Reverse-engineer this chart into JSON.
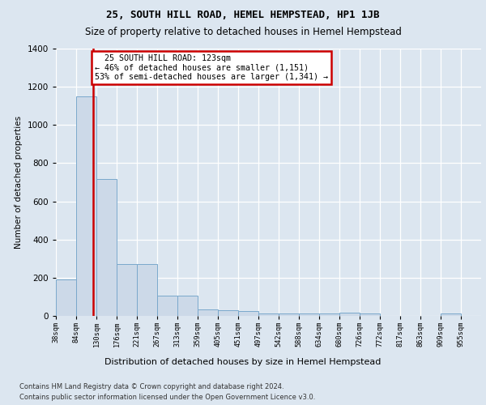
{
  "title1": "25, SOUTH HILL ROAD, HEMEL HEMPSTEAD, HP1 1JB",
  "title2": "Size of property relative to detached houses in Hemel Hempstead",
  "xlabel": "Distribution of detached houses by size in Hemel Hempstead",
  "ylabel": "Number of detached properties",
  "footer1": "Contains HM Land Registry data © Crown copyright and database right 2024.",
  "footer2": "Contains public sector information licensed under the Open Government Licence v3.0.",
  "annotation_line1": "  25 SOUTH HILL ROAD: 123sqm  ",
  "annotation_line2": "← 46% of detached houses are smaller (1,151)",
  "annotation_line3": "53% of semi-detached houses are larger (1,341) →",
  "property_size_sqm": 123,
  "bar_color": "#ccd9e8",
  "bar_edge_color": "#7aa8cc",
  "vline_color": "#cc0000",
  "annotation_box_edge": "#cc0000",
  "fig_bg_color": "#dce6f0",
  "plot_bg_color": "#dce6f0",
  "bin_edges": [
    38,
    84,
    130,
    176,
    221,
    267,
    313,
    359,
    405,
    451,
    497,
    542,
    588,
    634,
    680,
    726,
    772,
    817,
    863,
    909,
    955
  ],
  "bin_labels": [
    "38sqm",
    "84sqm",
    "130sqm",
    "176sqm",
    "221sqm",
    "267sqm",
    "313sqm",
    "359sqm",
    "405sqm",
    "451sqm",
    "497sqm",
    "542sqm",
    "588sqm",
    "634sqm",
    "680sqm",
    "726sqm",
    "772sqm",
    "817sqm",
    "863sqm",
    "909sqm",
    "955sqm"
  ],
  "bar_heights": [
    190,
    1150,
    715,
    270,
    270,
    107,
    107,
    35,
    28,
    27,
    14,
    14,
    14,
    14,
    18,
    14,
    0,
    0,
    0,
    14
  ],
  "ylim": [
    0,
    1400
  ],
  "yticks": [
    0,
    200,
    400,
    600,
    800,
    1000,
    1200,
    1400
  ]
}
